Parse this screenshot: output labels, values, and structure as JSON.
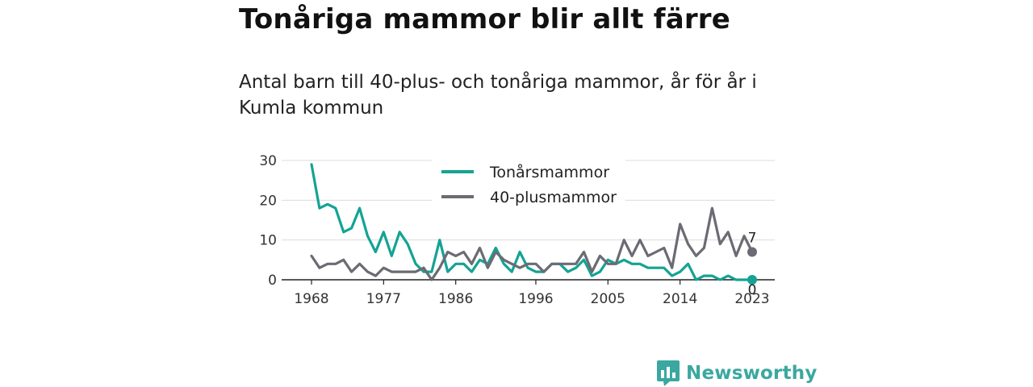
{
  "title": "Tonåriga mammor blir allt färre",
  "subtitle": "Antal barn till 40-plus- och tonåriga mammor, år för år i Kumla kommun",
  "brand": {
    "name": "Newsworthy",
    "color": "#3aa8a0"
  },
  "chart_data": {
    "type": "line",
    "x_tick_labels": [
      "1968",
      "1977",
      "1986",
      "1996",
      "2005",
      "2014",
      "2023"
    ],
    "y_tick_labels": [
      "0",
      "10",
      "20",
      "30"
    ],
    "xlim": [
      1968,
      2023
    ],
    "ylim": [
      0,
      30
    ],
    "grid": true,
    "legend_position": "top-center",
    "series": [
      {
        "name": "Tonårsmammor",
        "color": "#14a394",
        "x": [
          1968,
          1969,
          1970,
          1971,
          1972,
          1973,
          1974,
          1975,
          1976,
          1977,
          1978,
          1979,
          1980,
          1981,
          1982,
          1983,
          1984,
          1985,
          1986,
          1987,
          1988,
          1989,
          1990,
          1991,
          1992,
          1993,
          1994,
          1995,
          1996,
          1997,
          1998,
          1999,
          2000,
          2001,
          2002,
          2003,
          2004,
          2005,
          2006,
          2007,
          2008,
          2009,
          2010,
          2011,
          2012,
          2013,
          2014,
          2015,
          2016,
          2017,
          2018,
          2019,
          2020,
          2021,
          2022,
          2023
        ],
        "values": [
          29,
          18,
          19,
          18,
          12,
          13,
          18,
          11,
          7,
          12,
          6,
          12,
          9,
          4,
          2,
          2,
          10,
          2,
          4,
          4,
          2,
          5,
          4,
          8,
          4,
          2,
          7,
          3,
          2,
          2,
          4,
          4,
          2,
          3,
          5,
          1,
          2,
          5,
          4,
          5,
          4,
          4,
          3,
          3,
          3,
          1,
          2,
          4,
          0,
          1,
          1,
          0,
          1,
          0,
          0,
          0
        ],
        "end_label": "0"
      },
      {
        "name": "40-plusmammor",
        "color": "#6b6b73",
        "x": [
          1968,
          1969,
          1970,
          1971,
          1972,
          1973,
          1974,
          1975,
          1976,
          1977,
          1978,
          1979,
          1980,
          1981,
          1982,
          1983,
          1984,
          1985,
          1986,
          1987,
          1988,
          1989,
          1990,
          1991,
          1992,
          1993,
          1994,
          1995,
          1996,
          1997,
          1998,
          1999,
          2000,
          2001,
          2002,
          2003,
          2004,
          2005,
          2006,
          2007,
          2008,
          2009,
          2010,
          2011,
          2012,
          2013,
          2014,
          2015,
          2016,
          2017,
          2018,
          2019,
          2020,
          2021,
          2022,
          2023
        ],
        "values": [
          6,
          3,
          4,
          4,
          5,
          2,
          4,
          2,
          1,
          3,
          2,
          2,
          2,
          2,
          3,
          0,
          3,
          7,
          6,
          7,
          4,
          8,
          3,
          7,
          5,
          4,
          3,
          4,
          4,
          2,
          4,
          4,
          4,
          4,
          7,
          2,
          6,
          4,
          4,
          10,
          6,
          10,
          6,
          7,
          8,
          3,
          14,
          9,
          6,
          8,
          18,
          9,
          12,
          6,
          11,
          7
        ],
        "end_label": "7"
      }
    ]
  }
}
